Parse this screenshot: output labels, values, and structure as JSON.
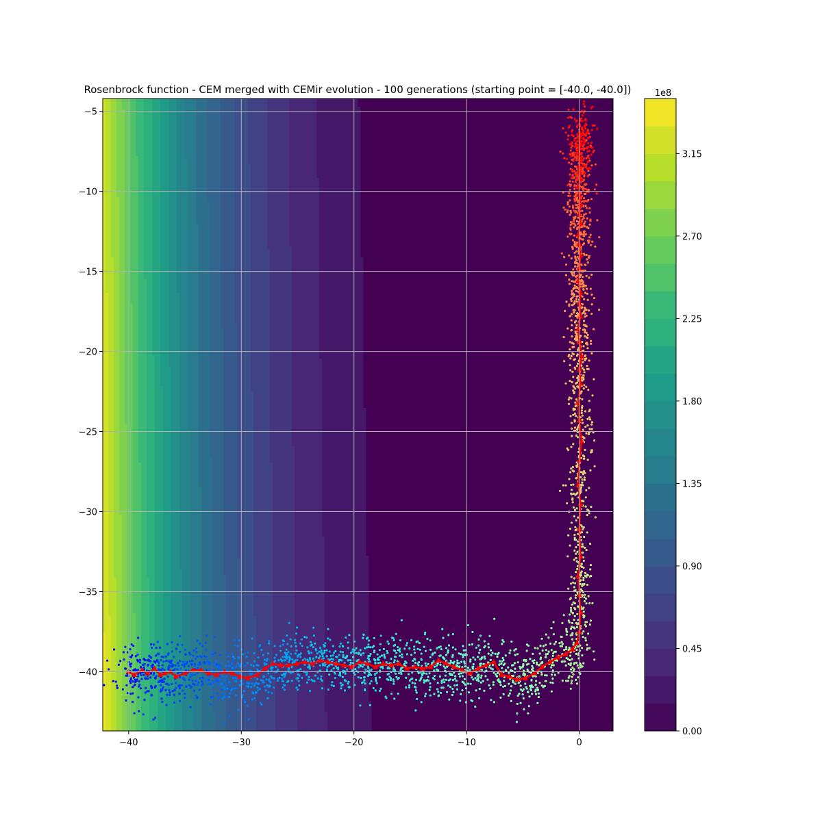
{
  "chart_data": {
    "type": "scatter",
    "title": "Rosenbrock function - CEM merged with CEMir evolution - 100 generations (starting point = [-40.0, -40.0])",
    "xlabel": "",
    "ylabel": "",
    "xlim": [
      -42.3,
      3.0
    ],
    "ylim": [
      -43.7,
      -4.2
    ],
    "x_ticks": [
      -40,
      -30,
      -20,
      -10,
      0
    ],
    "y_ticks": [
      -5,
      -10,
      -15,
      -20,
      -25,
      -30,
      -35,
      -40
    ],
    "grid": true,
    "background": {
      "type": "contourf",
      "function": "rosenbrock",
      "colormap": "viridis",
      "levels": [
        0,
        0.15,
        0.3,
        0.45,
        0.6,
        0.75,
        0.9,
        1.05,
        1.2,
        1.35,
        1.5,
        1.65,
        1.8,
        1.95,
        2.1,
        2.25,
        2.4,
        2.55,
        2.7,
        2.85,
        3.0,
        3.15,
        3.3,
        3.45
      ]
    },
    "colorbar": {
      "min": 0,
      "max": 3.45,
      "ticks": [
        "0.00",
        "0.45",
        "0.90",
        "1.35",
        "1.80",
        "2.25",
        "2.70",
        "3.15"
      ],
      "tick_values": [
        0,
        0.45,
        0.9,
        1.35,
        1.8,
        2.25,
        2.7,
        3.15
      ],
      "offset_label": "1e8"
    },
    "samples": {
      "generations": 100,
      "colormap": "rainbow",
      "note_points_per_generation": 30
    },
    "mean_path": {
      "name": "",
      "color": "#ff0000",
      "x": [
        -40.0,
        -39.5,
        -38.8,
        -38.3,
        -37.7,
        -37.2,
        -36.8,
        -36.3,
        -35.8,
        -35.0,
        -34.3,
        -33.6,
        -32.9,
        -32.2,
        -31.5,
        -30.8,
        -30.1,
        -29.4,
        -28.6,
        -27.9,
        -27.2,
        -26.5,
        -25.8,
        -25.1,
        -24.4,
        -23.7,
        -23.0,
        -22.3,
        -21.6,
        -20.9,
        -20.2,
        -19.5,
        -18.8,
        -18.1,
        -17.4,
        -16.7,
        -16.0,
        -15.3,
        -14.6,
        -13.9,
        -13.2,
        -12.5,
        -11.8,
        -11.1,
        -10.4,
        -9.7,
        -9.0,
        -8.3,
        -7.6,
        -6.9,
        -6.2,
        -5.5,
        -4.8,
        -4.0,
        -3.3,
        -2.6,
        -1.9,
        -1.2,
        -0.6,
        -0.2,
        0.0,
        0.1,
        0.0,
        -0.1,
        0.1,
        0.0,
        0.1,
        -0.1,
        0.0,
        0.2,
        0.0,
        -0.1,
        0.1,
        0.0,
        0.2,
        0.0,
        -0.1,
        0.1,
        0.0,
        0.1,
        -0.1,
        0.0,
        0.1,
        0.0,
        -0.1,
        0.1,
        0.0,
        0.1,
        0.0,
        -0.1,
        0.1,
        0.0,
        0.0,
        0.1,
        -0.1,
        0.0,
        0.1,
        0.0,
        0.0,
        0.1
      ],
      "y": [
        -40.0,
        -40.2,
        -39.9,
        -40.1,
        -39.8,
        -40.2,
        -40.1,
        -40.0,
        -40.3,
        -40.1,
        -39.9,
        -39.9,
        -40.1,
        -40.2,
        -40.0,
        -40.1,
        -40.3,
        -40.4,
        -40.2,
        -39.8,
        -39.5,
        -39.6,
        -39.6,
        -39.5,
        -39.4,
        -39.5,
        -39.3,
        -39.4,
        -39.5,
        -39.6,
        -39.7,
        -39.4,
        -39.5,
        -39.7,
        -39.5,
        -39.6,
        -39.5,
        -39.8,
        -39.7,
        -39.8,
        -39.7,
        -39.3,
        -39.5,
        -39.7,
        -39.9,
        -40.1,
        -39.8,
        -39.6,
        -39.4,
        -40.2,
        -40.3,
        -40.5,
        -40.4,
        -40.1,
        -39.7,
        -39.4,
        -39.1,
        -38.9,
        -38.6,
        -38.2,
        -37.5,
        -36.3,
        -35.2,
        -34.0,
        -32.8,
        -31.1,
        -29.5,
        -28.3,
        -26.8,
        -25.6,
        -24.3,
        -23.2,
        -22.0,
        -21.1,
        -20.3,
        -19.4,
        -18.6,
        -17.8,
        -17.0,
        -16.3,
        -15.6,
        -14.8,
        -14.0,
        -13.3,
        -12.7,
        -12.0,
        -11.4,
        -10.8,
        -10.2,
        -9.7,
        -9.2,
        -8.8,
        -8.4,
        -8.0,
        -7.6,
        -7.3,
        -7.0,
        -6.8,
        -6.6,
        -6.4
      ]
    }
  }
}
